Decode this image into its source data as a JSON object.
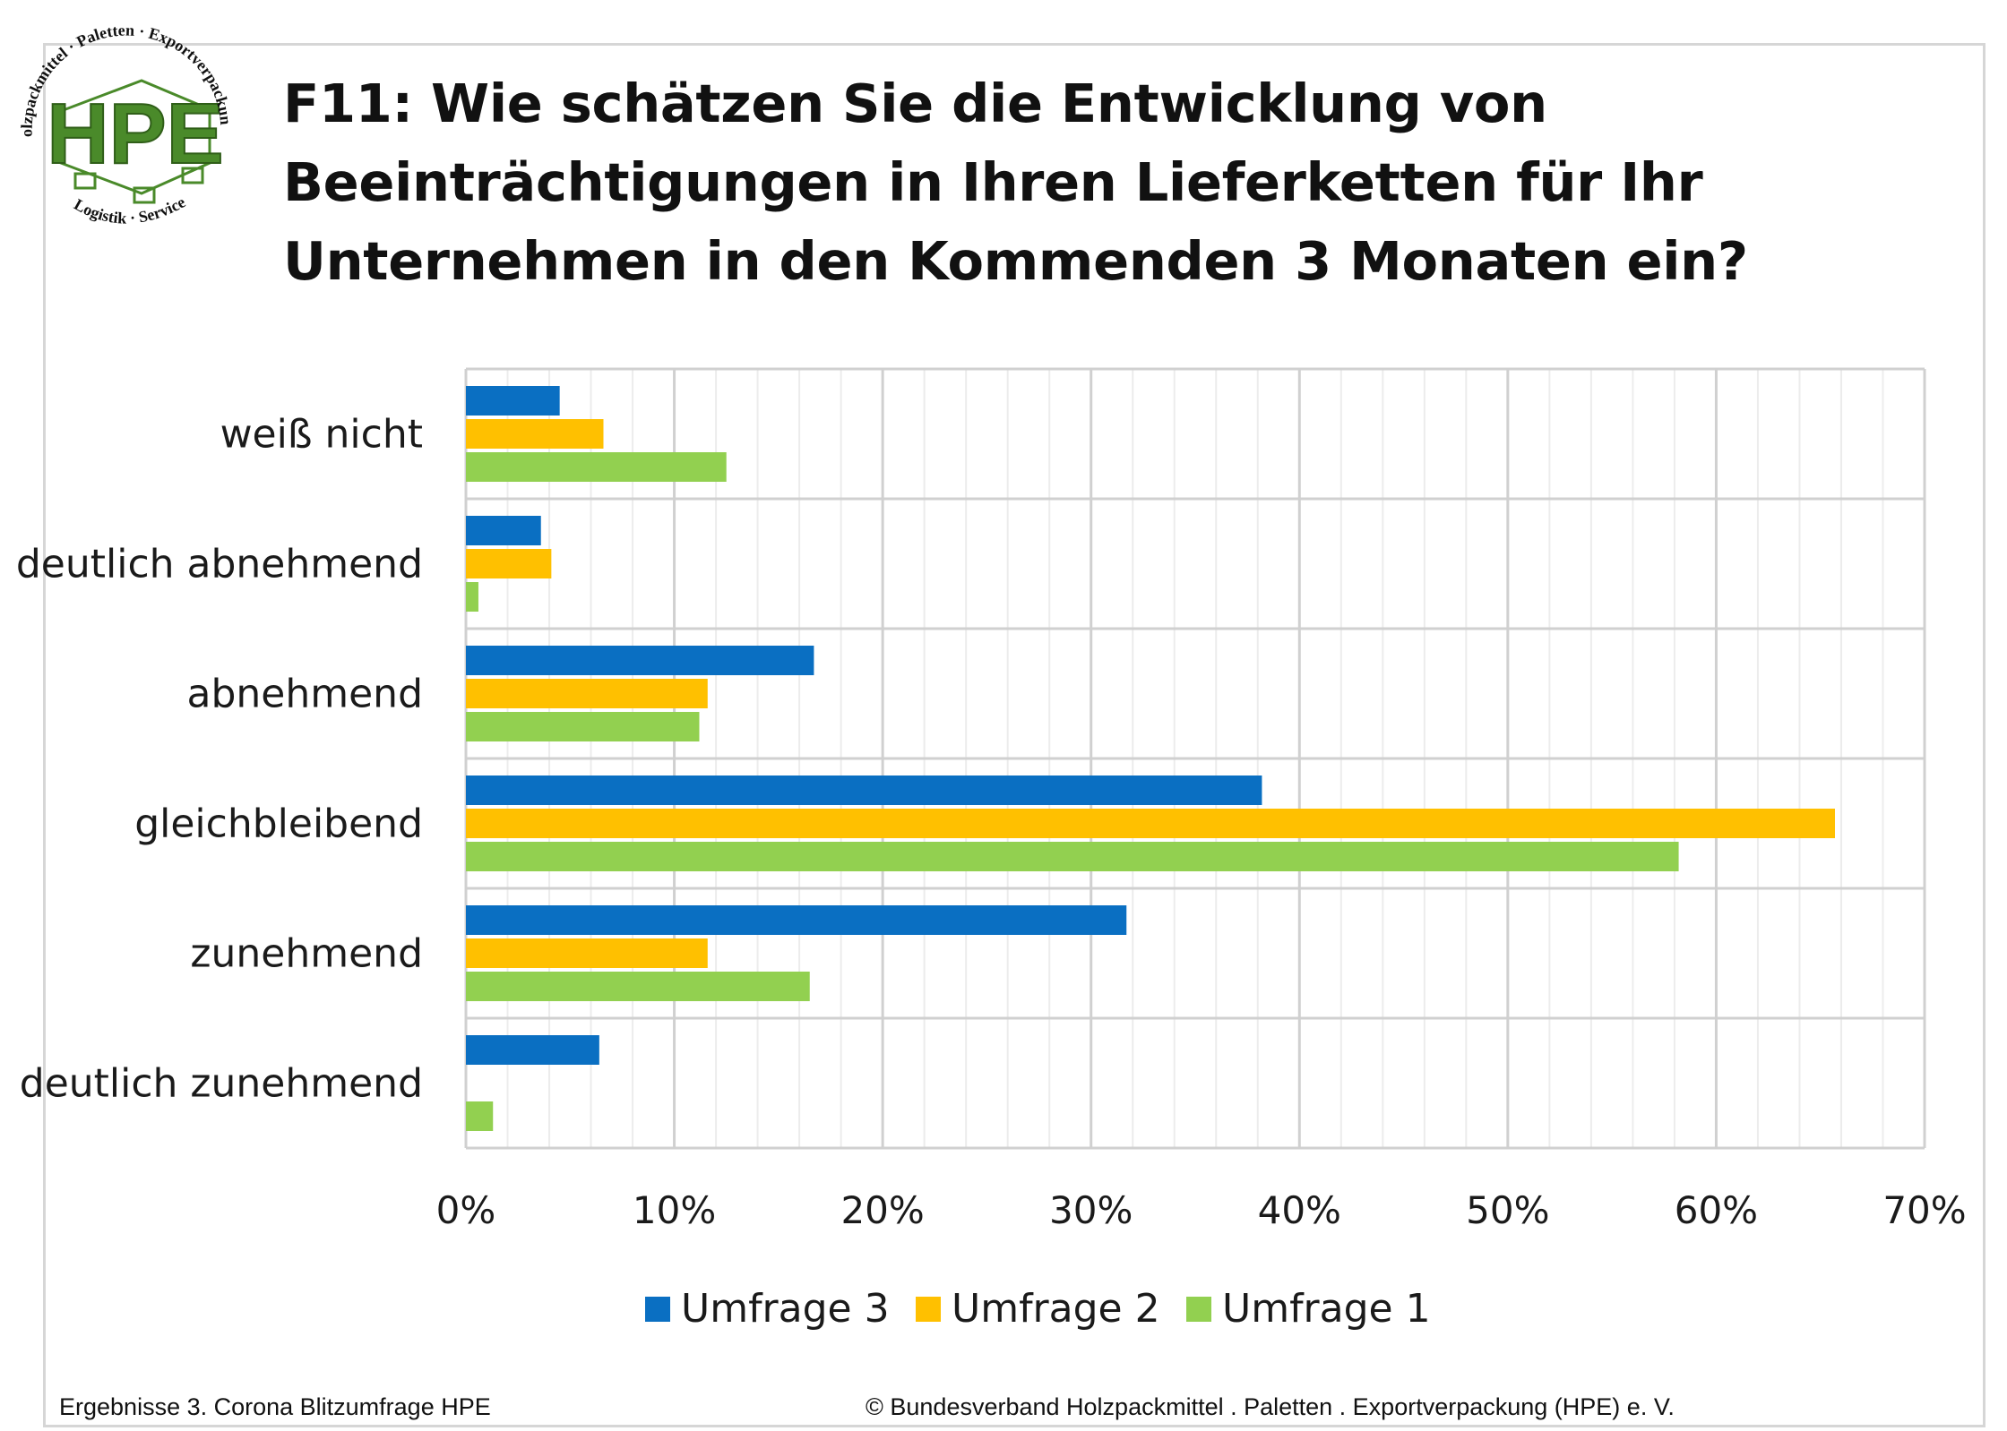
{
  "logo": {
    "letters": "HPE",
    "arc_top": "Holzpackmittel · Paletten · Exportverpackung",
    "arc_bottom": "Logistik · Service"
  },
  "title": {
    "line1": "F11: Wie schätzen Sie die Entwicklung von",
    "line2": "Beeinträchtigungen in Ihren Lieferketten für Ihr",
    "line3": "Unternehmen in den Kommenden 3 Monaten ein?"
  },
  "footer": {
    "left": "Ergebnisse 3. Corona Blitzumfrage HPE",
    "right": "© Bundesverband Holzpackmittel . Paletten . Exportverpackung (HPE) e. V."
  },
  "colors": {
    "umfrage3": "#0a6fc2",
    "umfrage2": "#ffc000",
    "umfrage1": "#92d050",
    "logo_green": "#4a8a2a"
  },
  "chart_data": {
    "type": "bar",
    "orientation": "horizontal",
    "categories": [
      "weiß nicht",
      "deutlich abnehmend",
      "abnehmend",
      "gleichbleibend",
      "zunehmend",
      "deutlich zunehmend"
    ],
    "series": [
      {
        "name": "Umfrage 3",
        "color": "#0a6fc2",
        "values": [
          4.5,
          3.6,
          16.7,
          38.2,
          31.7,
          6.4
        ]
      },
      {
        "name": "Umfrage 2",
        "color": "#ffc000",
        "values": [
          6.6,
          4.1,
          11.6,
          65.7,
          11.6,
          0
        ]
      },
      {
        "name": "Umfrage 1",
        "color": "#92d050",
        "values": [
          12.5,
          0.6,
          11.2,
          58.2,
          16.5,
          1.3
        ]
      }
    ],
    "xlim": [
      0,
      70
    ],
    "xticks": [
      "0%",
      "10%",
      "20%",
      "30%",
      "40%",
      "50%",
      "60%",
      "70%"
    ],
    "grid": true,
    "legend": "bottom"
  }
}
